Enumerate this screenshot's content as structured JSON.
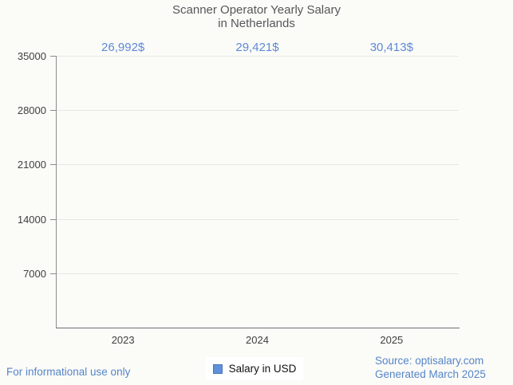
{
  "title_lines": [
    "Scanner Operator Yearly Salary",
    "in Netherlands"
  ],
  "chart_data": {
    "type": "bar",
    "title": "Scanner Operator Yearly Salary in Netherlands",
    "categories": [
      "2023",
      "2024",
      "2025"
    ],
    "values": [
      26992,
      29421,
      30413
    ],
    "value_labels": [
      "26,992$",
      "29,421$",
      "30,413$"
    ],
    "series": [
      {
        "name": "Salary in USD",
        "values": [
          26992,
          29421,
          30413
        ]
      }
    ],
    "xlabel": "",
    "ylabel": "",
    "ylim": [
      0,
      35000
    ],
    "yticks": [
      7000,
      14000,
      21000,
      28000,
      35000
    ],
    "grid": true,
    "legend": [
      "Salary in USD"
    ],
    "legend_position": "bottom-center"
  },
  "legend": {
    "label": "Salary in USD"
  },
  "footer": {
    "left": "For informational use only",
    "source": "Source: optisalary.com",
    "generated": "Generated March 2025"
  },
  "colors": {
    "background": "#fbfbf8",
    "title": "#57575a",
    "value_label": "#5e89d8",
    "axis_label": "#404040",
    "gridline": "#e7e7e4",
    "y_axis_line": "#8c8c8c",
    "x_axis_line": "#6f6f6f",
    "footer_text": "#5585c8",
    "bar_gradient_left": "#a4d1f8",
    "bar_gradient_highlight": "#ffffff",
    "bar_gradient_right": "#6a8ee2",
    "legend_swatch_fill": "#6191d9",
    "legend_swatch_border": "#4a74bb"
  }
}
